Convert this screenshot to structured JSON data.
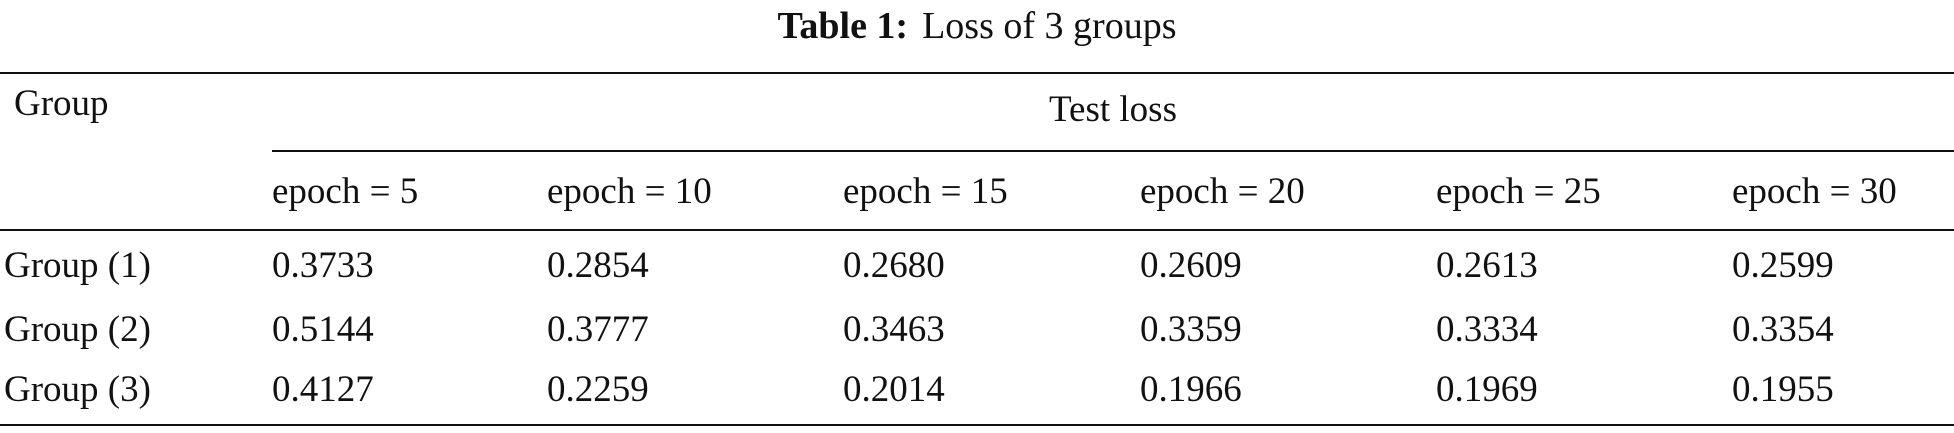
{
  "caption": {
    "label": "Table 1:",
    "text": "Loss of 3 groups"
  },
  "table": {
    "row_header": "Group",
    "group_header": "Test loss",
    "columns": [
      "epoch = 5",
      "epoch = 10",
      "epoch = 15",
      "epoch = 20",
      "epoch = 25",
      "epoch = 30"
    ],
    "rows": [
      {
        "label": "Group (1)",
        "values": [
          "0.3733",
          "0.2854",
          "0.2680",
          "0.2609",
          "0.2613",
          "0.2599"
        ]
      },
      {
        "label": "Group (2)",
        "values": [
          "0.5144",
          "0.3777",
          "0.3463",
          "0.3359",
          "0.3334",
          "0.3354"
        ]
      },
      {
        "label": "Group (3)",
        "values": [
          "0.4127",
          "0.2259",
          "0.2014",
          "0.1966",
          "0.1969",
          "0.1955"
        ]
      }
    ]
  }
}
